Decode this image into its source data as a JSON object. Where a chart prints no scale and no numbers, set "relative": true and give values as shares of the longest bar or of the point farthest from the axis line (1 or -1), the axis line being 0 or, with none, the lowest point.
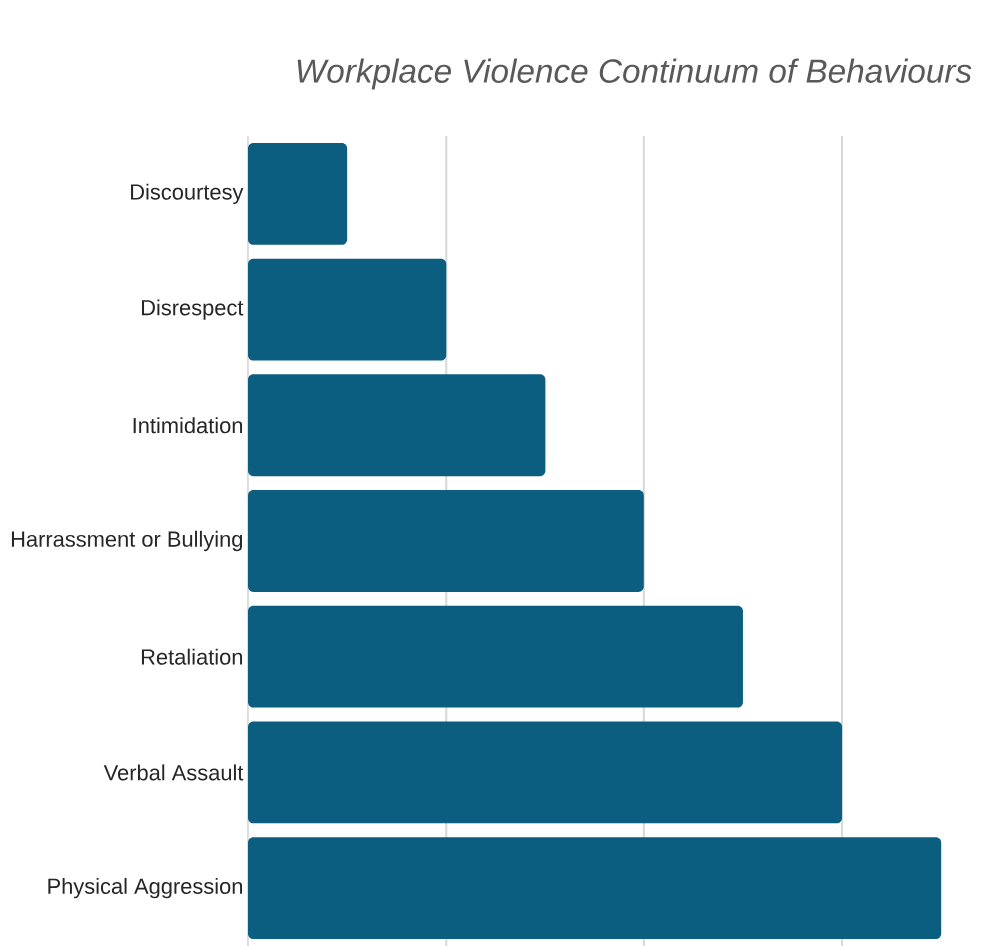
{
  "chart_data": {
    "type": "bar",
    "orientation": "horizontal",
    "relative": true,
    "title": "Workplace Violence Continuum of Behaviours",
    "categories": [
      "Discourtesy",
      "Disrespect",
      "Intimidation",
      "Harrassment or Bullying",
      "Retaliation",
      "Verbal Assault",
      "Physical Aggression"
    ],
    "values": [
      0.143,
      0.286,
      0.429,
      0.571,
      0.714,
      0.857,
      1
    ],
    "color": "#0b5e80",
    "grid": "x"
  }
}
